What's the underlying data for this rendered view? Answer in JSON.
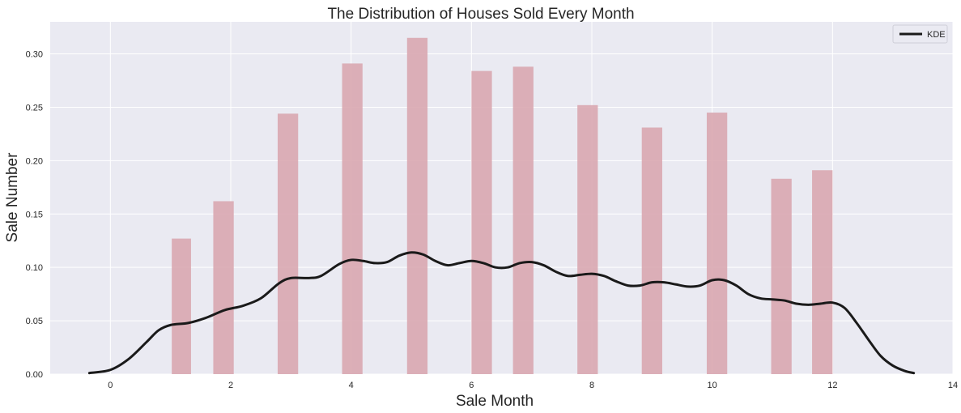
{
  "chart_data": {
    "type": "bar",
    "title": "The Distribution of Houses Sold Every Month",
    "xlabel": "Sale Month",
    "ylabel": "Sale Number",
    "xlim": [
      -1,
      14
    ],
    "ylim": [
      0,
      0.33
    ],
    "xticks": [
      0,
      2,
      4,
      6,
      8,
      10,
      12,
      14
    ],
    "yticks": [
      "0.00",
      "0.05",
      "0.10",
      "0.15",
      "0.20",
      "0.25",
      "0.30"
    ],
    "grid": true,
    "legend_position": "top-right",
    "colors": {
      "background": "#eaeaf2",
      "grid": "#ffffff",
      "bars": "#d9a7b0",
      "kde": "#1a1a1a"
    },
    "histogram": {
      "bin_edges": [
        1,
        1.33,
        1.69,
        2.05,
        2.76,
        3.11,
        3.84,
        4.18,
        4.96,
        5.31,
        5.97,
        6.31,
        6.67,
        7.02,
        7.74,
        8.09,
        8.82,
        9.16,
        9.89,
        10.23,
        10.94,
        11.28,
        11.66,
        12.0
      ],
      "bars": [
        {
          "x0": 1.02,
          "x1": 1.34,
          "height": 0.127
        },
        {
          "x0": 1.71,
          "x1": 2.05,
          "height": 0.162
        },
        {
          "x0": 2.78,
          "x1": 3.12,
          "height": 0.244
        },
        {
          "x0": 3.85,
          "x1": 4.19,
          "height": 0.291
        },
        {
          "x0": 4.93,
          "x1": 5.27,
          "height": 0.315
        },
        {
          "x0": 6.0,
          "x1": 6.34,
          "height": 0.284
        },
        {
          "x0": 6.69,
          "x1": 7.03,
          "height": 0.288
        },
        {
          "x0": 7.76,
          "x1": 8.1,
          "height": 0.252
        },
        {
          "x0": 8.83,
          "x1": 9.17,
          "height": 0.231
        },
        {
          "x0": 9.91,
          "x1": 10.25,
          "height": 0.245
        },
        {
          "x0": 10.98,
          "x1": 11.32,
          "height": 0.183
        },
        {
          "x0": 11.66,
          "x1": 12.0,
          "height": 0.191
        }
      ]
    },
    "series": [
      {
        "name": "KDE",
        "type": "line",
        "points": [
          [
            -0.35,
            0.001
          ],
          [
            0.0,
            0.004
          ],
          [
            0.3,
            0.014
          ],
          [
            0.6,
            0.03
          ],
          [
            0.8,
            0.041
          ],
          [
            1.0,
            0.046
          ],
          [
            1.3,
            0.048
          ],
          [
            1.6,
            0.053
          ],
          [
            1.9,
            0.06
          ],
          [
            2.2,
            0.064
          ],
          [
            2.5,
            0.071
          ],
          [
            2.8,
            0.085
          ],
          [
            3.0,
            0.09
          ],
          [
            3.3,
            0.09
          ],
          [
            3.5,
            0.092
          ],
          [
            3.8,
            0.103
          ],
          [
            4.0,
            0.107
          ],
          [
            4.2,
            0.106
          ],
          [
            4.4,
            0.104
          ],
          [
            4.6,
            0.105
          ],
          [
            4.8,
            0.111
          ],
          [
            5.0,
            0.114
          ],
          [
            5.2,
            0.112
          ],
          [
            5.4,
            0.106
          ],
          [
            5.6,
            0.102
          ],
          [
            5.8,
            0.104
          ],
          [
            6.0,
            0.106
          ],
          [
            6.2,
            0.104
          ],
          [
            6.4,
            0.1
          ],
          [
            6.6,
            0.1
          ],
          [
            6.8,
            0.104
          ],
          [
            7.0,
            0.105
          ],
          [
            7.2,
            0.102
          ],
          [
            7.4,
            0.096
          ],
          [
            7.6,
            0.092
          ],
          [
            7.8,
            0.093
          ],
          [
            8.0,
            0.094
          ],
          [
            8.2,
            0.092
          ],
          [
            8.4,
            0.087
          ],
          [
            8.6,
            0.083
          ],
          [
            8.8,
            0.083
          ],
          [
            9.0,
            0.086
          ],
          [
            9.2,
            0.086
          ],
          [
            9.4,
            0.084
          ],
          [
            9.6,
            0.082
          ],
          [
            9.8,
            0.083
          ],
          [
            10.0,
            0.088
          ],
          [
            10.2,
            0.088
          ],
          [
            10.4,
            0.083
          ],
          [
            10.6,
            0.075
          ],
          [
            10.8,
            0.071
          ],
          [
            11.0,
            0.07
          ],
          [
            11.2,
            0.069
          ],
          [
            11.4,
            0.066
          ],
          [
            11.6,
            0.065
          ],
          [
            11.8,
            0.066
          ],
          [
            12.0,
            0.067
          ],
          [
            12.2,
            0.062
          ],
          [
            12.4,
            0.048
          ],
          [
            12.6,
            0.032
          ],
          [
            12.8,
            0.017
          ],
          [
            13.0,
            0.008
          ],
          [
            13.2,
            0.003
          ],
          [
            13.35,
            0.001
          ]
        ]
      }
    ]
  }
}
